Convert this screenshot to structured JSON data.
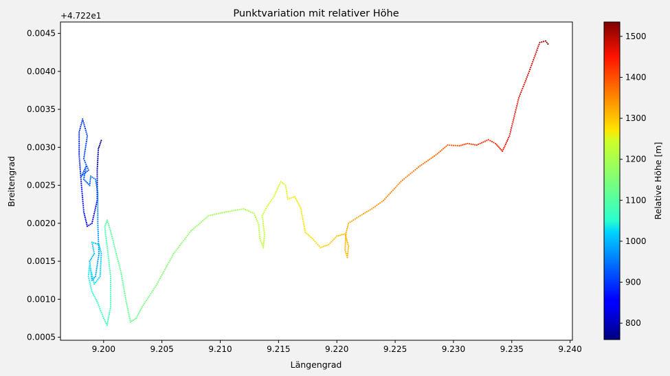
{
  "chart_data": {
    "type": "scatter",
    "title": "Punktvariation mit relativer Höhe",
    "xlabel": "Längengrad",
    "ylabel": "Breitengrad",
    "offset_text": "+4.722e1",
    "xlim": [
      9.1963,
      9.2402
    ],
    "ylim": [
      0.00046,
      0.00465
    ],
    "x_ticks": [
      "9.200",
      "9.205",
      "9.210",
      "9.215",
      "9.220",
      "9.225",
      "9.230",
      "9.235",
      "9.240"
    ],
    "y_ticks": [
      "0.0005",
      "0.0010",
      "0.0015",
      "0.0020",
      "0.0025",
      "0.0030",
      "0.0035",
      "0.0040",
      "0.0045"
    ],
    "colorbar": {
      "label": "Relative Höhe [m]",
      "range": [
        760,
        1535
      ],
      "ticks": [
        "800",
        "900",
        "1000",
        "1100",
        "1200",
        "1300",
        "1400",
        "1500"
      ],
      "colormap": "jet"
    },
    "track": [
      [
        9.1998,
        0.00309,
        760
      ],
      [
        9.19955,
        0.00298,
        780
      ],
      [
        9.19945,
        0.0027,
        800
      ],
      [
        9.19945,
        0.0023,
        820
      ],
      [
        9.199,
        0.002,
        840
      ],
      [
        9.1986,
        0.00196,
        850
      ],
      [
        9.1983,
        0.00215,
        860
      ],
      [
        9.1981,
        0.0025,
        870
      ],
      [
        9.1979,
        0.0029,
        880
      ],
      [
        9.1979,
        0.0032,
        890
      ],
      [
        9.1982,
        0.00337,
        900
      ],
      [
        9.1986,
        0.00315,
        905
      ],
      [
        9.1983,
        0.00285,
        910
      ],
      [
        9.1987,
        0.0027,
        915
      ],
      [
        9.1981,
        0.00262,
        920
      ],
      [
        9.1985,
        0.00275,
        925
      ],
      [
        9.1983,
        0.00258,
        930
      ],
      [
        9.1988,
        0.0025,
        935
      ],
      [
        9.1989,
        0.00262,
        940
      ],
      [
        9.1993,
        0.00258,
        950
      ],
      [
        9.1995,
        0.0024,
        960
      ],
      [
        9.1995,
        0.002,
        970
      ],
      [
        9.1996,
        0.0016,
        980
      ],
      [
        9.1993,
        0.0013,
        990
      ],
      [
        9.199,
        0.00125,
        995
      ],
      [
        9.1988,
        0.0015,
        1000
      ],
      [
        9.1992,
        0.0016,
        1005
      ],
      [
        9.199,
        0.00175,
        1010
      ],
      [
        9.1996,
        0.00172,
        1015
      ],
      [
        9.1998,
        0.0016,
        1020
      ],
      [
        9.1997,
        0.0013,
        1025
      ],
      [
        9.1992,
        0.0012,
        1030
      ],
      [
        9.1988,
        0.00145,
        1035
      ],
      [
        9.1987,
        0.0013,
        1040
      ],
      [
        9.199,
        0.0011,
        1050
      ],
      [
        9.1995,
        0.00095,
        1060
      ],
      [
        9.2,
        0.00075,
        1070
      ],
      [
        9.2003,
        0.00066,
        1075
      ],
      [
        9.2006,
        0.0009,
        1080
      ],
      [
        9.2006,
        0.0013,
        1085
      ],
      [
        9.2003,
        0.0017,
        1090
      ],
      [
        9.2001,
        0.00195,
        1095
      ],
      [
        9.2003,
        0.00204,
        1100
      ],
      [
        9.2006,
        0.0019,
        1105
      ],
      [
        9.201,
        0.00165,
        1110
      ],
      [
        9.2015,
        0.00135,
        1115
      ],
      [
        9.2019,
        0.001,
        1120
      ],
      [
        9.2023,
        0.0007,
        1125
      ],
      [
        9.2028,
        0.00075,
        1130
      ],
      [
        9.2033,
        0.0009,
        1140
      ],
      [
        9.2045,
        0.00118,
        1150
      ],
      [
        9.206,
        0.0016,
        1160
      ],
      [
        9.2075,
        0.0019,
        1170
      ],
      [
        9.209,
        0.0021,
        1180
      ],
      [
        9.2105,
        0.00215,
        1190
      ],
      [
        9.212,
        0.00219,
        1200
      ],
      [
        9.2129,
        0.00213,
        1210
      ],
      [
        9.2133,
        0.00198,
        1215
      ],
      [
        9.2134,
        0.0018,
        1220
      ],
      [
        9.2137,
        0.00168,
        1225
      ],
      [
        9.2138,
        0.00185,
        1230
      ],
      [
        9.2136,
        0.0021,
        1235
      ],
      [
        9.214,
        0.00222,
        1240
      ],
      [
        9.2146,
        0.00235,
        1245
      ],
      [
        9.2152,
        0.00255,
        1250
      ],
      [
        9.2156,
        0.0025,
        1255
      ],
      [
        9.2158,
        0.00232,
        1260
      ],
      [
        9.2164,
        0.00235,
        1265
      ],
      [
        9.2169,
        0.0022,
        1270
      ],
      [
        9.2173,
        0.00188,
        1275
      ],
      [
        9.2179,
        0.0018,
        1280
      ],
      [
        9.2186,
        0.00168,
        1290
      ],
      [
        9.2193,
        0.00172,
        1295
      ],
      [
        9.22,
        0.00183,
        1300
      ],
      [
        9.2207,
        0.00186,
        1305
      ],
      [
        9.221,
        0.0017,
        1310
      ],
      [
        9.2209,
        0.00155,
        1312
      ],
      [
        9.2207,
        0.00165,
        1314
      ],
      [
        9.2208,
        0.00188,
        1316
      ],
      [
        9.221,
        0.002,
        1320
      ],
      [
        9.222,
        0.0021,
        1330
      ],
      [
        9.223,
        0.00219,
        1340
      ],
      [
        9.224,
        0.0023,
        1350
      ],
      [
        9.2255,
        0.00255,
        1360
      ],
      [
        9.227,
        0.00274,
        1370
      ],
      [
        9.2285,
        0.0029,
        1380
      ],
      [
        9.2295,
        0.00303,
        1390
      ],
      [
        9.2305,
        0.00302,
        1400
      ],
      [
        9.2312,
        0.00305,
        1410
      ],
      [
        9.232,
        0.00303,
        1420
      ],
      [
        9.233,
        0.0031,
        1430
      ],
      [
        9.2336,
        0.00305,
        1440
      ],
      [
        9.2342,
        0.00295,
        1450
      ],
      [
        9.2348,
        0.00315,
        1460
      ],
      [
        9.2356,
        0.00365,
        1470
      ],
      [
        9.2365,
        0.004,
        1480
      ],
      [
        9.2374,
        0.00438,
        1500
      ],
      [
        9.2379,
        0.0044,
        1520
      ],
      [
        9.2381,
        0.00436,
        1530
      ]
    ]
  }
}
